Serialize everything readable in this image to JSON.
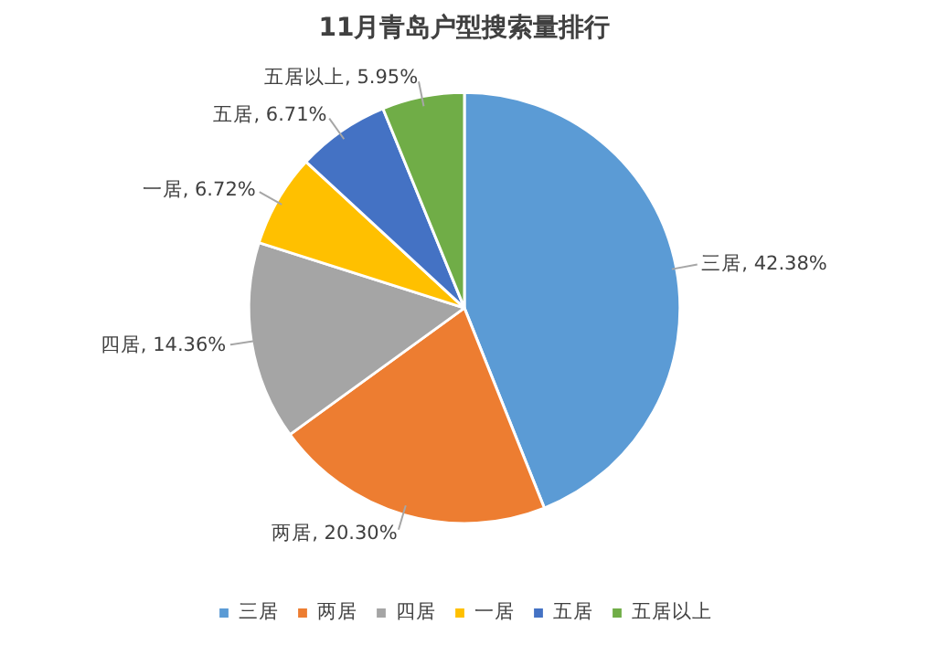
{
  "chart_data": {
    "type": "pie",
    "title": "11月青岛户型搜索量排行",
    "categories": [
      "三居",
      "两居",
      "四居",
      "一居",
      "五居",
      "五居以上"
    ],
    "values": [
      42.38,
      20.3,
      14.36,
      6.72,
      6.71,
      5.95
    ],
    "value_labels": [
      "三居, 42.38%",
      "两居, 20.30%",
      "四居, 14.36%",
      "一居, 6.72%",
      "五居, 6.71%",
      "五居以上, 5.95%"
    ],
    "colors": [
      "#5b9bd5",
      "#ed7d31",
      "#a5a5a5",
      "#ffc000",
      "#4472c4",
      "#70ad47"
    ],
    "legend": "bottom"
  }
}
